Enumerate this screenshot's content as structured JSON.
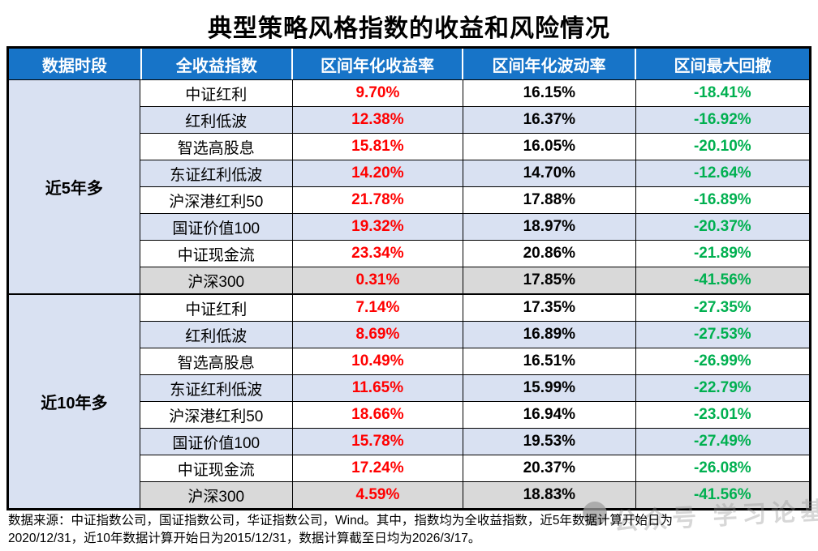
{
  "title": "典型策略风格指数的收益和风险情况",
  "colors": {
    "header_blue": "#1774C8",
    "row_light_blue": "#D9E1F2",
    "row_gray": "#D9D9D9",
    "return_red": "#FF0000",
    "drawdown_green": "#00B050",
    "border_black": "#000000"
  },
  "table": {
    "headers": [
      "数据时段",
      "全收益指数",
      "区间年化收益率",
      "区间年化波动率",
      "区间最大回撤"
    ],
    "sections": [
      {
        "period": "近5年多",
        "rows": [
          {
            "index": "中证红利",
            "return": "9.70%",
            "volatility": "16.15%",
            "drawdown": "-18.41%"
          },
          {
            "index": "红利低波",
            "return": "12.38%",
            "volatility": "16.37%",
            "drawdown": "-16.92%"
          },
          {
            "index": "智选高股息",
            "return": "15.81%",
            "volatility": "16.05%",
            "drawdown": "-20.10%"
          },
          {
            "index": "东证红利低波",
            "return": "14.20%",
            "volatility": "14.70%",
            "drawdown": "-12.64%"
          },
          {
            "index": "沪深港红利50",
            "return": "21.78%",
            "volatility": "17.88%",
            "drawdown": "-16.89%"
          },
          {
            "index": "国证价值100",
            "return": "19.32%",
            "volatility": "18.97%",
            "drawdown": "-20.37%"
          },
          {
            "index": "中证现金流",
            "return": "23.34%",
            "volatility": "20.86%",
            "drawdown": "-21.89%"
          },
          {
            "index": "沪深300",
            "return": "0.31%",
            "volatility": "17.85%",
            "drawdown": "-41.56%"
          }
        ]
      },
      {
        "period": "近10年多",
        "rows": [
          {
            "index": "中证红利",
            "return": "7.14%",
            "volatility": "17.35%",
            "drawdown": "-27.35%"
          },
          {
            "index": "红利低波",
            "return": "8.69%",
            "volatility": "16.89%",
            "drawdown": "-27.53%"
          },
          {
            "index": "智选高股息",
            "return": "10.49%",
            "volatility": "16.51%",
            "drawdown": "-26.99%"
          },
          {
            "index": "东证红利低波",
            "return": "11.65%",
            "volatility": "15.99%",
            "drawdown": "-22.79%"
          },
          {
            "index": "沪深港红利50",
            "return": "18.66%",
            "volatility": "16.94%",
            "drawdown": "-23.01%"
          },
          {
            "index": "国证价值100",
            "return": "15.78%",
            "volatility": "19.53%",
            "drawdown": "-27.49%"
          },
          {
            "index": "中证现金流",
            "return": "17.24%",
            "volatility": "20.37%",
            "drawdown": "-26.08%"
          },
          {
            "index": "沪深300",
            "return": "4.59%",
            "volatility": "18.83%",
            "drawdown": "-41.56%"
          }
        ]
      }
    ]
  },
  "footer": {
    "line1": "数据来源：中证指数公司，国证指数公司，华证指数公司，Wind。其中，指数均为全收益指数，近5年数据计算开始日为",
    "line2": "2020/12/31，近10年数据计算开始日为2015/12/31，数据计算截至日均为2026/3/17。"
  },
  "watermark": {
    "text": "公众号 学习论基"
  },
  "chart_data": {
    "type": "table",
    "title": "典型策略风格指数的收益和风险情况",
    "columns": [
      "数据时段",
      "全收益指数",
      "区间年化收益率",
      "区间年化波动率",
      "区间最大回撤"
    ],
    "rows": [
      [
        "近5年多",
        "中证红利",
        "9.70%",
        "16.15%",
        "-18.41%"
      ],
      [
        "近5年多",
        "红利低波",
        "12.38%",
        "16.37%",
        "-16.92%"
      ],
      [
        "近5年多",
        "智选高股息",
        "15.81%",
        "16.05%",
        "-20.10%"
      ],
      [
        "近5年多",
        "东证红利低波",
        "14.20%",
        "14.70%",
        "-12.64%"
      ],
      [
        "近5年多",
        "沪深港红利50",
        "21.78%",
        "17.88%",
        "-16.89%"
      ],
      [
        "近5年多",
        "国证价值100",
        "19.32%",
        "18.97%",
        "-20.37%"
      ],
      [
        "近5年多",
        "中证现金流",
        "23.34%",
        "20.86%",
        "-21.89%"
      ],
      [
        "近5年多",
        "沪深300",
        "0.31%",
        "17.85%",
        "-41.56%"
      ],
      [
        "近10年多",
        "中证红利",
        "7.14%",
        "17.35%",
        "-27.35%"
      ],
      [
        "近10年多",
        "红利低波",
        "8.69%",
        "16.89%",
        "-27.53%"
      ],
      [
        "近10年多",
        "智选高股息",
        "10.49%",
        "16.51%",
        "-26.99%"
      ],
      [
        "近10年多",
        "东证红利低波",
        "11.65%",
        "15.99%",
        "-22.79%"
      ],
      [
        "近10年多",
        "沪深港红利50",
        "18.66%",
        "16.94%",
        "-23.01%"
      ],
      [
        "近10年多",
        "国证价值100",
        "15.78%",
        "19.53%",
        "-27.49%"
      ],
      [
        "近10年多",
        "中证现金流",
        "17.24%",
        "20.37%",
        "-26.08%"
      ],
      [
        "近10年多",
        "沪深300",
        "4.59%",
        "18.83%",
        "-41.56%"
      ]
    ]
  }
}
